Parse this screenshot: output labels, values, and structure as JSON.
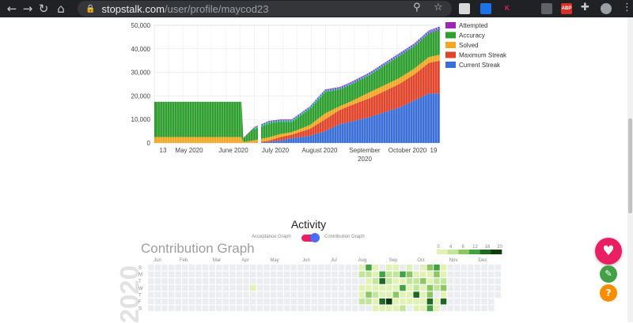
{
  "browser": {
    "url_host": "stopstalk.com",
    "url_path": "/user/profile/maycod23",
    "icons": [
      "back-icon",
      "forward-icon",
      "reload-icon",
      "home-icon",
      "lock-icon",
      "zoom-icon",
      "star-icon",
      "extension-icon",
      "profile-avatar"
    ],
    "extensions": [
      {
        "text": "",
        "color": "#d9d9d9"
      },
      {
        "text": "",
        "color": "#1a73e8"
      },
      {
        "text": "K",
        "color": "#202124"
      },
      {
        "text": "",
        "color": "#5f6368"
      },
      {
        "text": "ABP",
        "color": "#d93025"
      }
    ]
  },
  "chart_data": {
    "type": "area",
    "x_tick_labels": [
      "13",
      "May 2020",
      "June 2020",
      "July 2020",
      "August 2020",
      "September 2020",
      "October 2020",
      "19"
    ],
    "y_tick_labels": [
      "0",
      "10,000",
      "20,000",
      "30,000",
      "40,000",
      "50,000"
    ],
    "ylim": [
      0,
      50000
    ],
    "legend_position": "right",
    "grid": true,
    "series": [
      {
        "name": "Attempted",
        "color": "#9c27b0"
      },
      {
        "name": "Accuracy",
        "color": "#2e9e2e"
      },
      {
        "name": "Solved",
        "color": "#f5a623"
      },
      {
        "name": "Maximum Streak",
        "color": "#e0452b"
      },
      {
        "name": "Current Streak",
        "color": "#3a6fd8"
      }
    ],
    "stack_points": [
      [
        0,
        0,
        0,
        17500,
        0
      ],
      [
        0.13,
        0,
        0,
        17500,
        0
      ],
      [
        0.2,
        0,
        0,
        17500,
        0
      ],
      [
        0.235,
        0,
        0,
        17500,
        0
      ],
      [
        0.24,
        0,
        0,
        2000,
        200
      ],
      [
        0.27,
        0,
        0,
        6500,
        300
      ],
      [
        0.31,
        500,
        500,
        8000,
        400
      ],
      [
        0.34,
        1000,
        1500,
        7000,
        500
      ],
      [
        0.37,
        2000,
        1500,
        6000,
        500
      ],
      [
        0.42,
        3000,
        3000,
        9000,
        600
      ],
      [
        0.46,
        5000,
        5000,
        12000,
        700
      ],
      [
        0.5,
        8000,
        6000,
        9000,
        800
      ],
      [
        0.53,
        9000,
        7000,
        9000,
        900
      ],
      [
        0.58,
        11000,
        8000,
        10000,
        900
      ],
      [
        0.62,
        13000,
        9000,
        11000,
        1000
      ],
      [
        0.66,
        15000,
        10000,
        12000,
        1100
      ],
      [
        0.7,
        18000,
        11000,
        12000,
        1200
      ],
      [
        0.74,
        21000,
        13000,
        12500,
        1300
      ],
      [
        0.77,
        21000,
        14000,
        13000,
        1500
      ]
    ]
  },
  "activity": {
    "title": "Activity",
    "toggle_left": "Acceptance Graph",
    "toggle_right": "Contribution Graph",
    "contribution_title": "Contribution Graph",
    "year": "2020",
    "months": [
      "Jun",
      "Feb",
      "Mar",
      "Apr",
      "May",
      "Jun",
      "Jul",
      "Aug",
      "Sep",
      "Oct",
      "Nov",
      "Dec"
    ],
    "weekdays": [
      "S",
      "M",
      "T",
      "W",
      "T",
      "F",
      "S"
    ],
    "legend_ticks": [
      "0",
      "4",
      "8",
      "12",
      "16",
      "20"
    ],
    "colors": [
      "#ebedf0",
      "#e0f3b5",
      "#c2e59c",
      "#8cc665",
      "#44a340",
      "#1e6823",
      "#0b3d0b"
    ],
    "active_from_week": 31,
    "active_to_week": 52
  },
  "fabs": {
    "heart": "♥",
    "edit": "✎",
    "help": "?"
  }
}
